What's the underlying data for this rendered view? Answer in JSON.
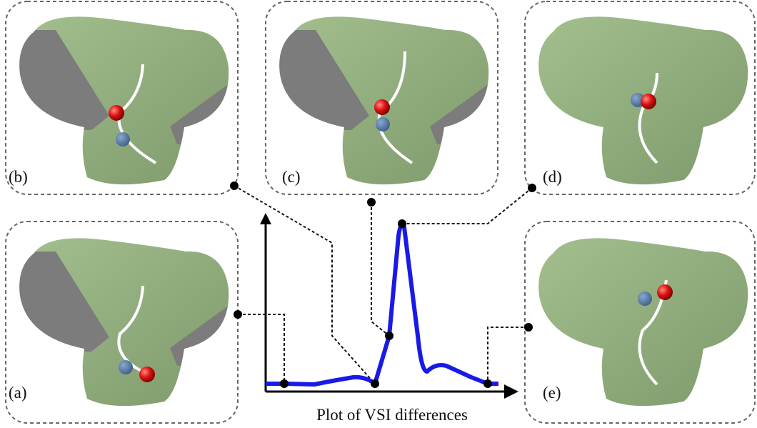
{
  "panels": [
    {
      "label": "(b)"
    },
    {
      "label": "(c)"
    },
    {
      "label": "(d)"
    },
    {
      "label": "(a)"
    },
    {
      "label": "(e)"
    }
  ],
  "plot": {
    "caption": "Plot of VSI differences"
  }
}
